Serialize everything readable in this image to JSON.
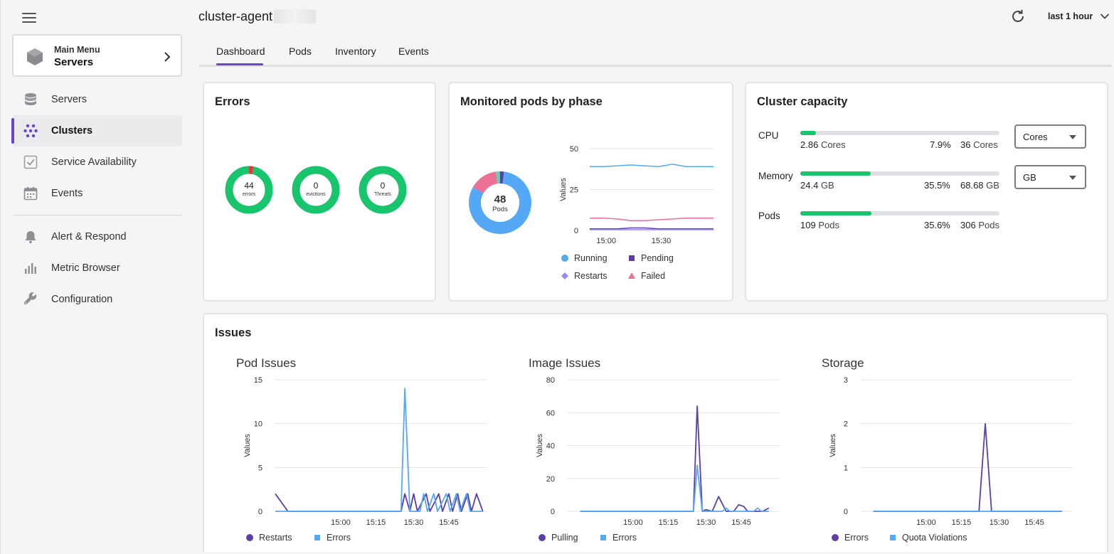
{
  "header": {
    "title": "cluster-agent",
    "time_range": "last 1 hour",
    "tabs": [
      "Dashboard",
      "Pods",
      "Inventory",
      "Events"
    ],
    "active_tab": "Dashboard"
  },
  "sidebar": {
    "main_menu": {
      "small": "Main Menu",
      "big": "Servers"
    },
    "items": [
      {
        "label": "Servers",
        "icon": "database-icon"
      },
      {
        "label": "Clusters",
        "icon": "cluster-icon",
        "active": true
      },
      {
        "label": "Service Availability",
        "icon": "check-square-icon"
      },
      {
        "label": "Events",
        "icon": "calendar-icon"
      },
      {
        "label": "Alert & Respond",
        "icon": "bell-icon"
      },
      {
        "label": "Metric Browser",
        "icon": "bar-chart-icon"
      },
      {
        "label": "Configuration",
        "icon": "wrench-icon"
      }
    ]
  },
  "errors": {
    "title": "Errors",
    "donuts": [
      {
        "value": "44",
        "label": "errors",
        "red_fraction": 0.03
      },
      {
        "value": "0",
        "label": "evictions",
        "red_fraction": 0
      },
      {
        "value": "0",
        "label": "Threats",
        "red_fraction": 0
      }
    ]
  },
  "pods_phase": {
    "title": "Monitored pods by phase",
    "center_value": "48",
    "center_label": "Pods",
    "legend": [
      "Running",
      "Pending",
      "Restarts",
      "Failed"
    ]
  },
  "capacity": {
    "title": "Cluster capacity",
    "rows": [
      {
        "label": "CPU",
        "used": "2.86",
        "used_unit": "Cores",
        "percent": "7.9%",
        "fraction": 0.079,
        "total": "36",
        "total_unit": "Cores",
        "select": "Cores"
      },
      {
        "label": "Memory",
        "used": "24.4",
        "used_unit": "GB",
        "percent": "35.5%",
        "fraction": 0.355,
        "total": "68.68",
        "total_unit": "GB",
        "select": "GB"
      },
      {
        "label": "Pods",
        "used": "109",
        "used_unit": "Pods",
        "percent": "35.6%",
        "fraction": 0.356,
        "total": "306",
        "total_unit": "Pods"
      }
    ]
  },
  "issues": {
    "title": "Issues",
    "pod": {
      "title": "Pod Issues",
      "legend": [
        "Restarts",
        "Errors"
      ]
    },
    "image": {
      "title": "Image Issues",
      "legend": [
        "Pulling",
        "Errors"
      ]
    },
    "storage": {
      "title": "Storage",
      "legend": [
        "Errors",
        "Quota Violations"
      ]
    }
  },
  "colors": {
    "accent": "#6745c9",
    "green": "#18c46c",
    "red": "#e8353b",
    "running": "#55a8f5",
    "pending": "#5b3ea8",
    "restarts": "#9b8af0",
    "failed": "#ec6f96"
  },
  "chart_data": [
    {
      "type": "pie",
      "title": "Monitored pods by phase",
      "categories": [
        "Running",
        "Failed",
        "Restarts",
        "Pending"
      ],
      "values": [
        39,
        7,
        1,
        1
      ]
    },
    {
      "type": "line",
      "x": [
        "14:52",
        "15:00",
        "15:10",
        "15:20",
        "15:28",
        "15:30",
        "15:31",
        "15:32",
        "15:40",
        "15:50"
      ],
      "xticks": [
        "15:00",
        "15:30"
      ],
      "ylabel": "Values",
      "ylim": [
        0,
        50
      ],
      "yticks": [
        0,
        25,
        50
      ],
      "series": [
        {
          "name": "Running",
          "values": [
            39,
            39,
            39.5,
            40,
            39.5,
            39,
            40.5,
            39,
            39,
            39
          ]
        },
        {
          "name": "Failed",
          "values": [
            7.5,
            7.5,
            7,
            6,
            6,
            6.5,
            7,
            7.5,
            7.5,
            7.5
          ]
        },
        {
          "name": "Pending",
          "values": [
            1,
            1,
            1,
            1.5,
            1.5,
            1,
            1,
            1,
            1,
            1
          ]
        },
        {
          "name": "Restarts",
          "values": [
            0.5,
            0.5,
            0.5,
            0.5,
            0.5,
            0.5,
            0.5,
            0.5,
            0.5,
            0.5
          ]
        }
      ]
    },
    {
      "type": "line",
      "title": "Pod Issues",
      "xticks": [
        "15:00",
        "15:15",
        "15:30",
        "15:45"
      ],
      "ylabel": "Values",
      "ylim": [
        0,
        15
      ],
      "yticks": [
        0,
        5,
        10,
        15
      ],
      "series": [
        {
          "name": "Restarts",
          "points": [
            [
              14.4,
              2
            ],
            [
              14.5,
              0
            ],
            [
              15.4,
              0
            ],
            [
              15.43,
              2
            ],
            [
              15.47,
              0
            ],
            [
              15.5,
              2
            ],
            [
              15.53,
              0
            ],
            [
              15.6,
              2
            ],
            [
              15.63,
              0
            ],
            [
              15.7,
              2
            ],
            [
              15.73,
              0
            ],
            [
              15.78,
              2
            ],
            [
              15.81,
              0
            ],
            [
              15.85,
              2
            ],
            [
              15.88,
              0
            ],
            [
              15.93,
              2
            ],
            [
              15.96,
              0
            ],
            [
              16.0,
              2
            ],
            [
              16.05,
              0
            ]
          ]
        },
        {
          "name": "Errors",
          "points": [
            [
              14.4,
              0
            ],
            [
              15.4,
              0
            ],
            [
              15.43,
              14
            ],
            [
              15.47,
              0
            ],
            [
              15.55,
              0
            ],
            [
              15.58,
              2
            ],
            [
              15.61,
              0
            ],
            [
              15.66,
              2
            ],
            [
              15.69,
              0
            ],
            [
              15.76,
              2
            ],
            [
              15.79,
              0
            ],
            [
              15.84,
              2
            ],
            [
              15.87,
              0
            ],
            [
              15.92,
              2
            ],
            [
              15.95,
              0
            ],
            [
              16.05,
              0
            ]
          ]
        }
      ]
    },
    {
      "type": "line",
      "title": "Image Issues",
      "xticks": [
        "15:00",
        "15:15",
        "15:30",
        "15:45"
      ],
      "ylabel": "Values",
      "ylim": [
        0,
        80
      ],
      "yticks": [
        0,
        20,
        40,
        60,
        80
      ],
      "series": [
        {
          "name": "Pulling",
          "points": [
            [
              14.5,
              0
            ],
            [
              15.4,
              0
            ],
            [
              15.43,
              64
            ],
            [
              15.47,
              0
            ],
            [
              15.5,
              1
            ],
            [
              15.55,
              0
            ],
            [
              15.6,
              9
            ],
            [
              15.66,
              0
            ],
            [
              15.72,
              0
            ],
            [
              15.76,
              4
            ],
            [
              15.8,
              3
            ],
            [
              15.83,
              0
            ],
            [
              15.95,
              0
            ],
            [
              16.0,
              2
            ]
          ]
        },
        {
          "name": "Errors",
          "points": [
            [
              14.5,
              0
            ],
            [
              15.4,
              0
            ],
            [
              15.43,
              28
            ],
            [
              15.47,
              0
            ],
            [
              15.63,
              0
            ],
            [
              15.66,
              2
            ],
            [
              15.69,
              0
            ],
            [
              15.88,
              0
            ],
            [
              15.91,
              2
            ],
            [
              15.94,
              0
            ],
            [
              16.0,
              0
            ]
          ]
        }
      ]
    },
    {
      "type": "line",
      "title": "Storage",
      "xticks": [
        "15:00",
        "15:15",
        "15:30",
        "15:45"
      ],
      "ylabel": "Values",
      "ylim": [
        0,
        3
      ],
      "yticks": [
        0,
        1,
        2,
        3
      ],
      "series": [
        {
          "name": "Errors",
          "points": [
            [
              14.5,
              0
            ],
            [
              15.34,
              0
            ],
            [
              15.39,
              2
            ],
            [
              15.44,
              0
            ],
            [
              16.0,
              0
            ]
          ]
        },
        {
          "name": "Quota Violations",
          "points": [
            [
              14.5,
              0
            ],
            [
              16.0,
              0
            ]
          ]
        }
      ]
    }
  ]
}
